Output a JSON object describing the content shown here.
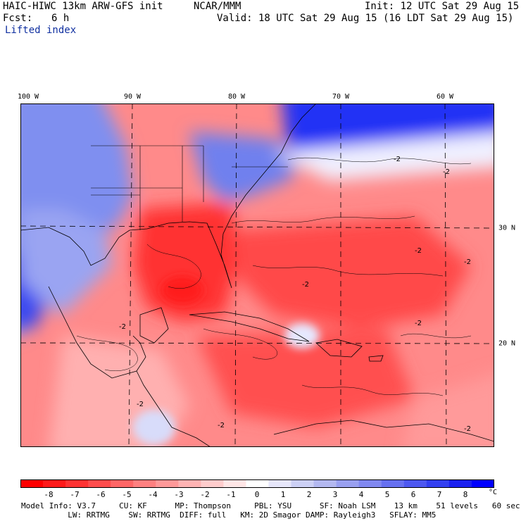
{
  "header": {
    "model_title": "HAIC-HIWC 13km ARW-GFS init",
    "org": "NCAR/MMM",
    "init_time": "Init: 12 UTC Sat 29 Aug 15",
    "fcst_label": "Fcst:",
    "fcst_value": "6 h",
    "valid_time": "Valid: 18 UTC Sat 29 Aug 15 (16 LDT Sat 29 Aug 15)",
    "field_name": "Lifted index"
  },
  "map": {
    "lon_labels": [
      "100 W",
      "90 W",
      "80 W",
      "70 W",
      "60 W"
    ],
    "lat_labels": [
      "30 N",
      "20 N"
    ],
    "contour_labels": [
      "-2",
      "-2",
      "-2",
      "-2",
      "-2",
      "-2",
      "-2",
      "-2",
      "-2",
      "-2"
    ],
    "colors": {
      "negative_strong": "#ff0000",
      "negative_mid": "#ff6666",
      "negative_light": "#ffb3b3",
      "neutral": "#ffffff",
      "positive_light": "#c0c8f5",
      "positive_mid": "#7f8ff0",
      "positive_strong": "#0000ff"
    }
  },
  "colorbar": {
    "ticks": [
      "-8",
      "-7",
      "-6",
      "-5",
      "-4",
      "-3",
      "-2",
      "-1",
      "0",
      "1",
      "2",
      "3",
      "4",
      "5",
      "6",
      "7",
      "8"
    ],
    "unit": "°C",
    "colors": [
      "#ff0000",
      "#ff1a1a",
      "#ff3333",
      "#ff4d4d",
      "#ff6666",
      "#ff8080",
      "#ff9999",
      "#ffb3b3",
      "#ffcccc",
      "#ffe6e6",
      "#ffffff",
      "#e6e6fa",
      "#ccd0f5",
      "#b3b8f0",
      "#99a0f0",
      "#8088f0",
      "#6670f0",
      "#4d58f0",
      "#3340f0",
      "#1a20f0",
      "#0000ff"
    ]
  },
  "footer": {
    "line1": "Model Info: V3.7     CU: KF      MP: Thompson     PBL: YSU      SF: Noah LSM    13 km    51 levels   60 sec",
    "line2": "          LW: RRTMG    SW: RRTMG  DIFF: full   KM: 2D Smagor DAMP: Rayleigh3   SFLAY: MM5"
  }
}
